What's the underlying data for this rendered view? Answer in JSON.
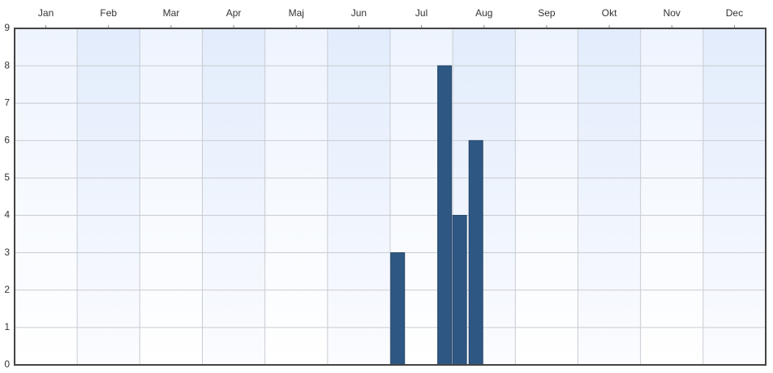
{
  "chart_data": {
    "type": "bar",
    "x": [
      6.12,
      6.87,
      7.11,
      7.37
    ],
    "values": [
      3,
      8,
      4,
      6
    ],
    "color": "#2f5783",
    "xlim": [
      0,
      12
    ],
    "xticks": [
      {
        "value": 0.5,
        "label": "Jan"
      },
      {
        "value": 1.5,
        "label": "Feb"
      },
      {
        "value": 2.5,
        "label": "Mar"
      },
      {
        "value": 3.5,
        "label": "Apr"
      },
      {
        "value": 4.5,
        "label": "Maj"
      },
      {
        "value": 5.5,
        "label": "Jun"
      },
      {
        "value": 6.5,
        "label": "Jul"
      },
      {
        "value": 7.5,
        "label": "Aug"
      },
      {
        "value": 8.5,
        "label": "Sep"
      },
      {
        "value": 9.5,
        "label": "Okt"
      },
      {
        "value": 10.5,
        "label": "Nov"
      },
      {
        "value": 11.5,
        "label": "Dec"
      }
    ],
    "ylim": [
      0,
      9
    ],
    "yticks": [
      0,
      1,
      2,
      3,
      4,
      5,
      6,
      7,
      8,
      9
    ],
    "grid": true
  }
}
